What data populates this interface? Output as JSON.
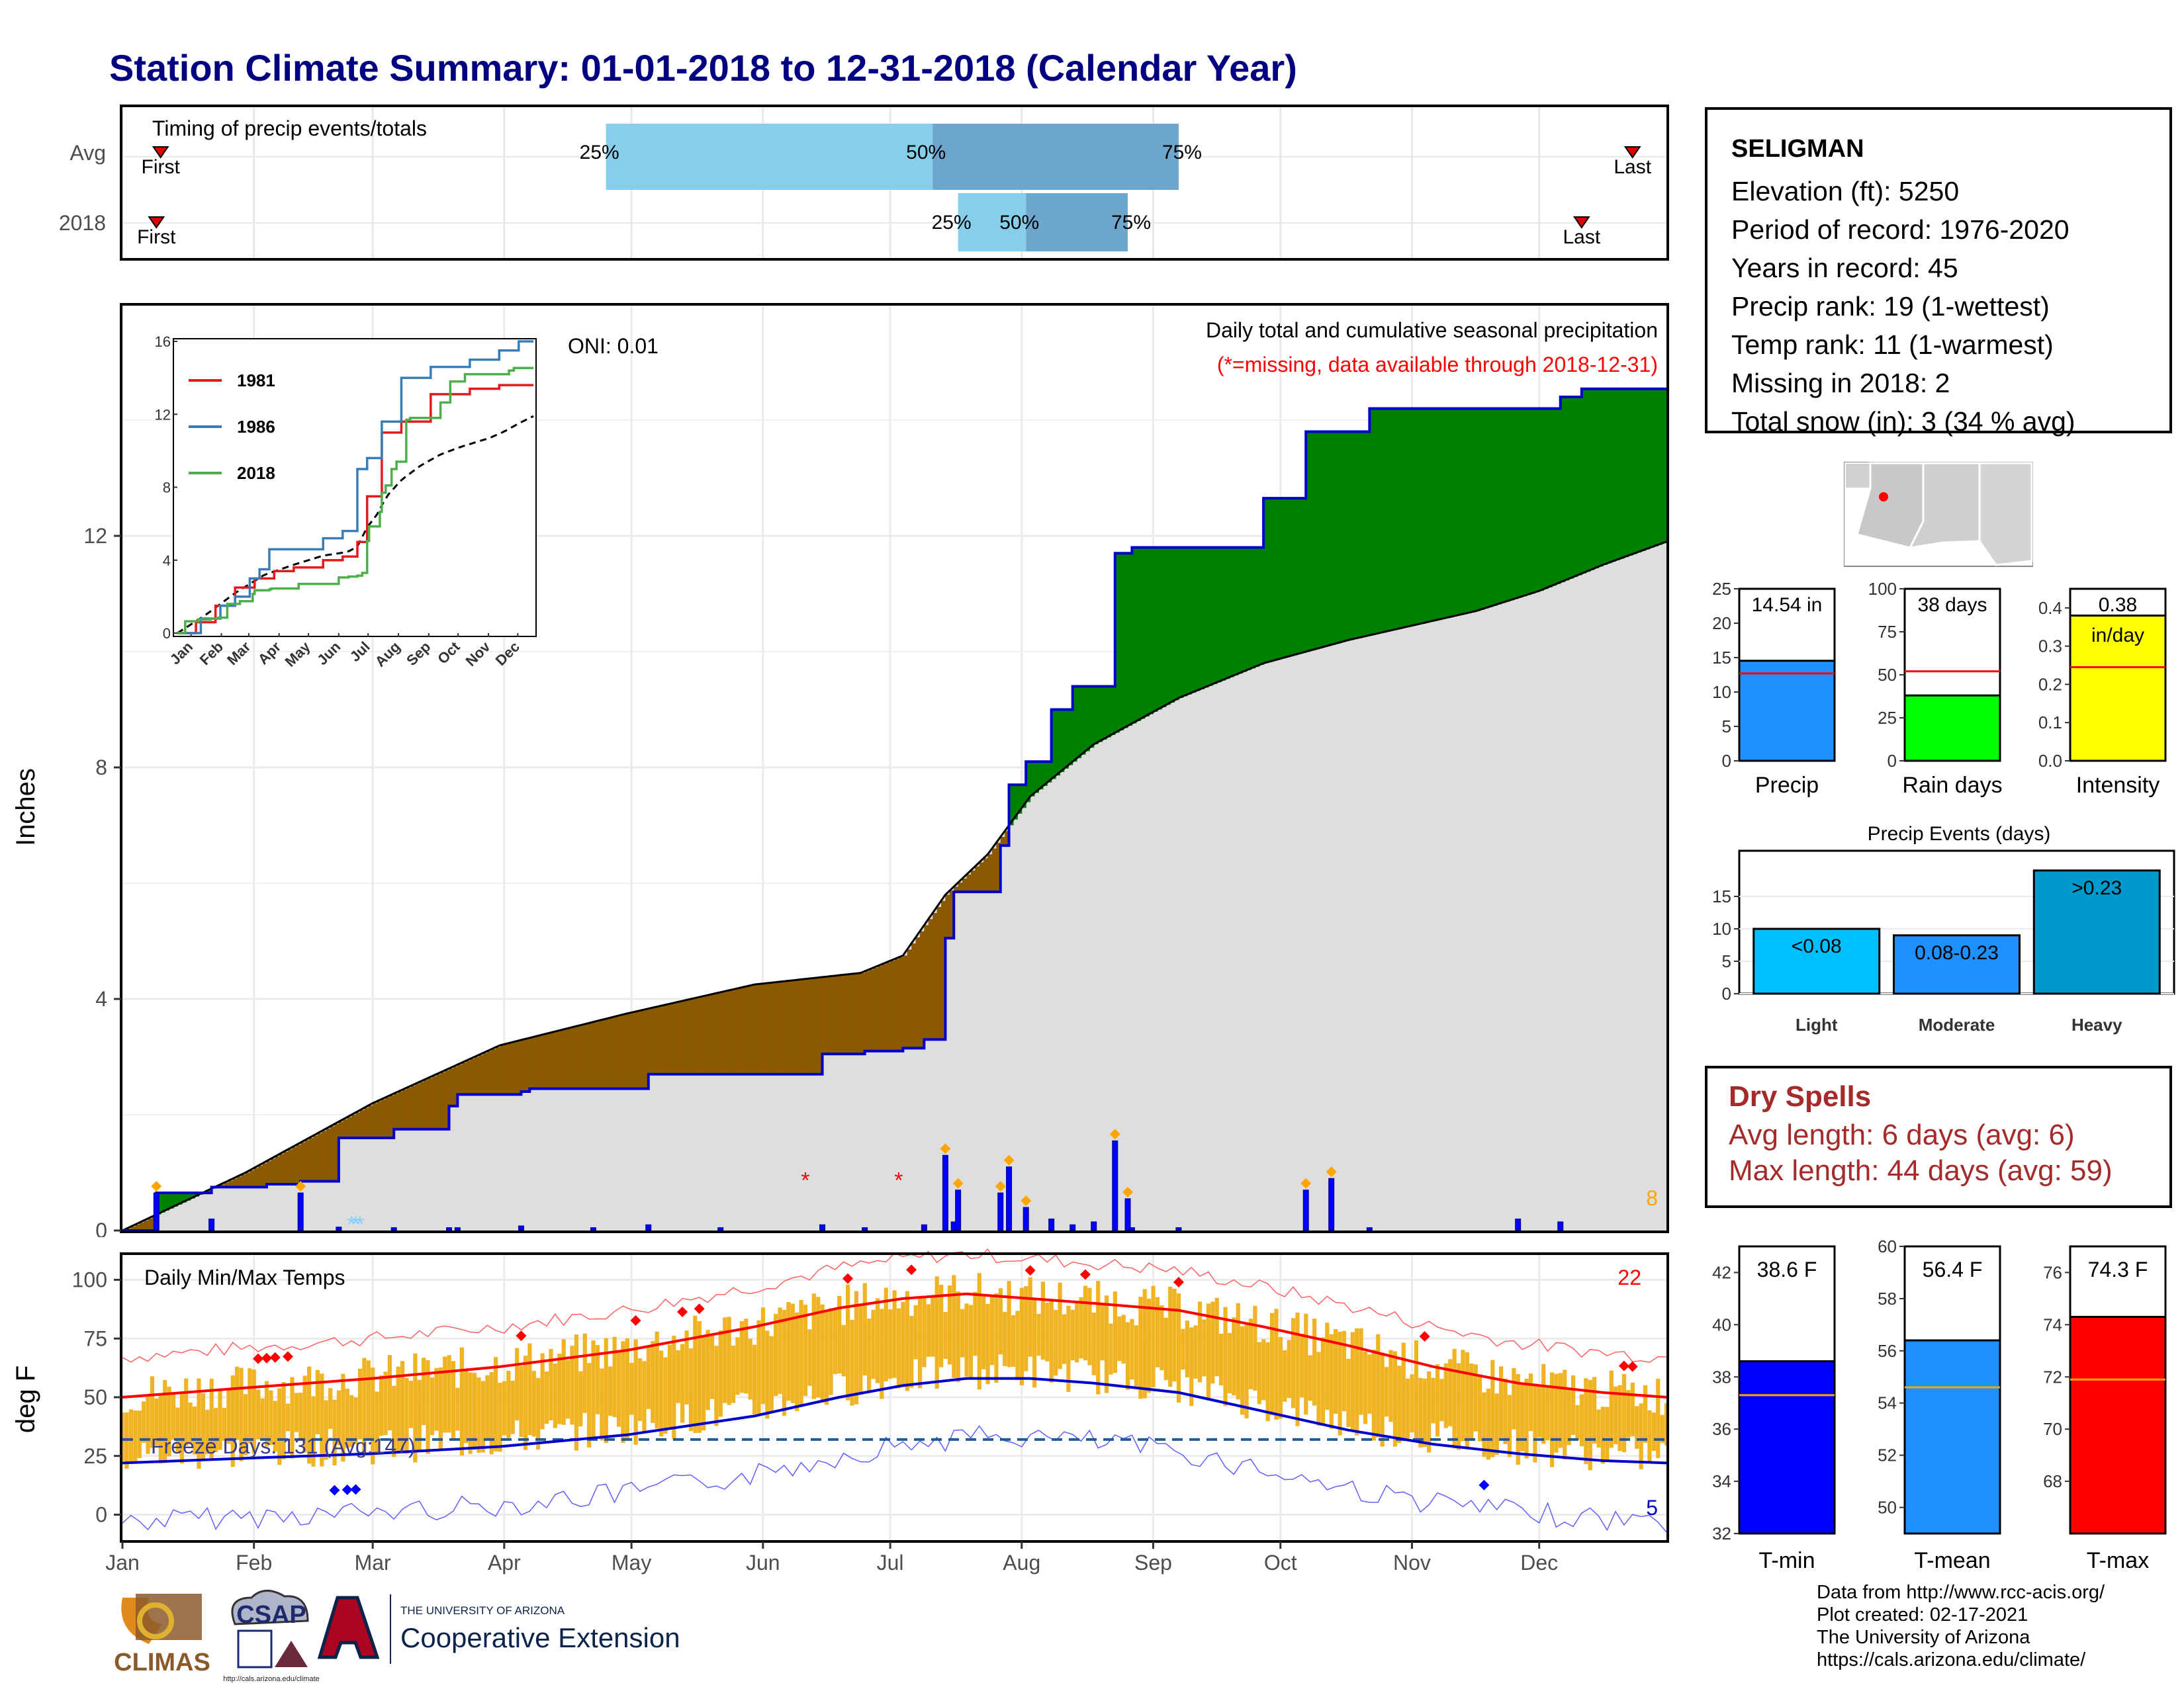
{
  "title": "Station Climate Summary: 01-01-2018 to 12-31-2018 (Calendar Year)",
  "colors": {
    "title": "#000080",
    "precip_fill_above": "#008000",
    "precip_fill_below": "#8b5a00",
    "cumulative_line": "#0000cd",
    "normal_area": "#dedede",
    "temp_bars": "#f0b323",
    "tmax_line": "#ff0000",
    "tmin_line": "#0000cd",
    "dry_spells": "#a52a2a"
  },
  "months": [
    "Jan",
    "Feb",
    "Mar",
    "Apr",
    "May",
    "Jun",
    "Jul",
    "Aug",
    "Sep",
    "Oct",
    "Nov",
    "Dec"
  ],
  "timing": {
    "title": "Timing of precip events/totals",
    "rows": [
      "Avg",
      "2018"
    ],
    "first_label": "First",
    "last_label": "Last",
    "avg": {
      "first_doy": 10,
      "q25_doy": 115,
      "q50_doy": 192,
      "q75_doy": 250,
      "last_doy": 357
    },
    "y2018": {
      "first_doy": 9,
      "q25_doy": 198,
      "q50_doy": 214,
      "q75_doy": 238,
      "last_doy": 345
    },
    "q_labels": [
      "25%",
      "50%",
      "75%"
    ]
  },
  "precip_panel": {
    "ylabel": "Inches",
    "annotation_1": "Daily total and cumulative seasonal precipitation",
    "annotation_2": "(*=missing, data available through 2018-12-31)",
    "oni": "ONI: 0.01",
    "count_label": "8",
    "yticks": [
      0,
      4,
      8,
      12
    ],
    "ylim": [
      0,
      16
    ],
    "inset": {
      "yticks": [
        0,
        4,
        8,
        12,
        16
      ],
      "series": [
        {
          "name": "1981",
          "color": "#e41a1c"
        },
        {
          "name": "1986",
          "color": "#377eb8"
        },
        {
          "name": "2018",
          "color": "#4daf4a"
        }
      ]
    }
  },
  "chart_data": [
    {
      "type": "area",
      "title": "Daily total and cumulative seasonal precipitation",
      "ylabel": "Inches",
      "ylim": [
        0,
        16
      ],
      "x_unit": "day of year",
      "cumulative_2018": {
        "x": [
          1,
          9,
          15,
          22,
          35,
          43,
          52,
          55,
          65,
          78,
          80,
          95,
          97,
          108,
          112,
          125,
          142,
          166,
          176,
          185,
          190,
          195,
          197,
          198,
          200,
          207,
          208,
          210,
          214,
          220,
          225,
          235,
          239,
          250,
          270,
          280,
          295,
          330,
          340,
          345,
          365
        ],
        "y": [
          0,
          0.65,
          0.65,
          0.75,
          0.8,
          0.85,
          1.6,
          1.6,
          1.75,
          2.15,
          2.35,
          2.4,
          2.45,
          2.45,
          2.45,
          2.7,
          2.7,
          3.05,
          3.1,
          3.15,
          3.3,
          5.05,
          5.85,
          5.85,
          5.85,
          5.85,
          6.65,
          7.7,
          8.1,
          9.0,
          9.4,
          11.7,
          11.8,
          11.8,
          12.65,
          13.8,
          14.2,
          14.2,
          14.4,
          14.54,
          14.54
        ]
      },
      "normal_cumulative": {
        "x": [
          1,
          30,
          60,
          90,
          120,
          150,
          175,
          185,
          195,
          205,
          215,
          230,
          250,
          270,
          290,
          305,
          320,
          335,
          350,
          365
        ],
        "y": [
          0,
          1.0,
          2.2,
          3.2,
          3.75,
          4.25,
          4.45,
          4.75,
          5.8,
          6.5,
          7.5,
          8.4,
          9.2,
          9.8,
          10.2,
          10.45,
          10.7,
          11.05,
          11.5,
          11.9
        ]
      },
      "daily_2018": {
        "x": [
          9,
          22,
          43,
          52,
          65,
          78,
          80,
          95,
          112,
          125,
          142,
          166,
          176,
          190,
          195,
          197,
          198,
          208,
          210,
          214,
          220,
          225,
          230,
          235,
          238,
          239,
          250,
          280,
          286,
          295,
          330,
          340
        ],
        "y": [
          0.65,
          0.2,
          0.65,
          0.06,
          0.05,
          0.05,
          0.05,
          0.08,
          0.05,
          0.1,
          0.05,
          0.1,
          0.05,
          0.1,
          1.3,
          0.15,
          0.7,
          0.65,
          1.1,
          0.4,
          0.2,
          0.1,
          0.15,
          1.55,
          0.55,
          0.05,
          0.05,
          0.7,
          0.9,
          0.05,
          0.2,
          0.15
        ]
      },
      "missing_doy": [
        55,
        56,
        57,
        162,
        184
      ]
    },
    {
      "type": "line",
      "title": "Daily Min/Max Temps",
      "ylabel": "deg F",
      "ylim": [
        -10,
        110
      ],
      "yticks": [
        0,
        25,
        50,
        75,
        100
      ],
      "freeze_days_label": "Freeze Days: 131 (Avg:147)",
      "freeze_line": 32,
      "count_hot": "22",
      "count_cold": "5",
      "avg_tmax": {
        "x": [
          1,
          30,
          60,
          90,
          120,
          150,
          170,
          185,
          200,
          215,
          230,
          250,
          270,
          290,
          310,
          330,
          350,
          365
        ],
        "y": [
          50,
          54,
          58,
          63,
          70,
          80,
          88,
          92,
          94,
          92,
          90,
          87,
          80,
          72,
          63,
          56,
          52,
          50
        ]
      },
      "avg_tmin": {
        "x": [
          1,
          30,
          60,
          90,
          120,
          150,
          170,
          185,
          200,
          215,
          230,
          250,
          270,
          290,
          310,
          330,
          350,
          365
        ],
        "y": [
          22,
          24,
          26,
          29,
          34,
          42,
          50,
          55,
          58,
          58,
          56,
          52,
          44,
          36,
          30,
          26,
          23,
          22
        ]
      }
    },
    {
      "type": "bar",
      "categories": [
        "Precip"
      ],
      "values": [
        14.54
      ],
      "ylim": [
        0,
        25
      ],
      "yticks": [
        0,
        5,
        10,
        15,
        20,
        25
      ],
      "avg": 12.7,
      "value_label": "14.54 in",
      "color": "#1e90ff"
    },
    {
      "type": "bar",
      "categories": [
        "Rain days"
      ],
      "values": [
        38
      ],
      "ylim": [
        0,
        100
      ],
      "yticks": [
        0,
        25,
        50,
        75,
        100
      ],
      "avg": 52,
      "value_label": "38 days",
      "color": "#00ff00"
    },
    {
      "type": "bar",
      "categories": [
        "Intensity"
      ],
      "values": [
        0.38
      ],
      "ylim": [
        0,
        0.45
      ],
      "yticks": [
        "0.0",
        "0.1",
        "0.2",
        "0.3",
        "0.4"
      ],
      "avg": 0.245,
      "value_label": "0.38",
      "unit_label": "in/day",
      "color": "#ffff00"
    },
    {
      "type": "bar",
      "title": "Precip Events (days)",
      "categories": [
        "Light",
        "Moderate",
        "Heavy"
      ],
      "bar_labels": [
        "<0.08",
        "0.08-0.23",
        ">0.23"
      ],
      "values": [
        10,
        9,
        19
      ],
      "ylim": [
        0,
        20
      ],
      "yticks": [
        0,
        5,
        10,
        15
      ],
      "colors": [
        "#00bfff",
        "#1e90ff",
        "#0099cc"
      ]
    },
    {
      "type": "bar",
      "categories": [
        "T-min"
      ],
      "values": [
        38.6
      ],
      "ylim": [
        32,
        43
      ],
      "yticks": [
        32,
        34,
        36,
        38,
        40,
        42
      ],
      "avg": 37.3,
      "value_label": "38.6 F",
      "color": "#0000ff"
    },
    {
      "type": "bar",
      "categories": [
        "T-mean"
      ],
      "values": [
        56.4
      ],
      "ylim": [
        49,
        60
      ],
      "yticks": [
        50,
        52,
        54,
        56,
        58,
        60
      ],
      "avg": 54.6,
      "value_label": "56.4 F",
      "color": "#1e90ff"
    },
    {
      "type": "bar",
      "categories": [
        "T-max"
      ],
      "values": [
        74.3
      ],
      "ylim": [
        66,
        77
      ],
      "yticks": [
        68,
        70,
        72,
        74,
        76
      ],
      "avg": 71.9,
      "value_label": "74.3 F",
      "color": "#ff0000"
    }
  ],
  "station": {
    "name": "SELIGMAN",
    "elevation": "Elevation (ft): 5250",
    "period": "Period of record: 1976-2020",
    "years": "Years in record: 45",
    "precip_rank": "Precip rank: 19 (1-wettest)",
    "temp_rank": "Temp rank: 11 (1-warmest)",
    "missing": "Missing in 2018: 2",
    "snow": "Total snow (in): 3 (34 % avg)"
  },
  "dry_spells": {
    "title": "Dry Spells",
    "avg": "Avg length: 6 days (avg: 6)",
    "max": "Max length: 44 days (avg: 59)"
  },
  "credits": {
    "line1": "Data from http://www.rcc-acis.org/",
    "line2": "Plot created: 02-17-2021",
    "line3": "The University of Arizona",
    "line4": "https://cals.arizona.edu/climate/"
  },
  "logos": {
    "climas": "CLIMAS",
    "csap": "CSAP",
    "csap_url": "http://cals.arizona.edu/climate",
    "ua_small": "THE UNIVERSITY OF ARIZONA",
    "ua_big": "Cooperative Extension"
  }
}
